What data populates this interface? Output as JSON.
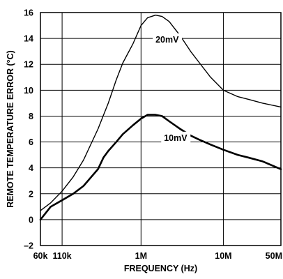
{
  "chart_data": {
    "type": "line",
    "title": "",
    "xlabel": "FREQUENCY (Hz)",
    "ylabel": "REMOTE TEMPERATURE ERROR (°C)",
    "xscale": "log",
    "xlim": [
      60000,
      50000000
    ],
    "ylim": [
      -2,
      16
    ],
    "grid": true,
    "xticks": [
      {
        "value": 60000,
        "label": "60k"
      },
      {
        "value": 110000,
        "label": "110k"
      },
      {
        "value": 1000000,
        "label": "1M"
      },
      {
        "value": 10000000,
        "label": "10M"
      },
      {
        "value": 50000000,
        "label": "50M"
      }
    ],
    "yticks": [
      -2,
      0,
      2,
      4,
      6,
      8,
      10,
      12,
      14,
      16
    ],
    "ytick_labels": [
      "–2",
      "0",
      "2",
      "4",
      "6",
      "8",
      "10",
      "12",
      "14",
      "16"
    ],
    "series": [
      {
        "name": "20mV",
        "stroke_width": 1.4,
        "x": [
          60000,
          80000,
          110000,
          150000,
          200000,
          300000,
          400000,
          500000,
          600000,
          800000,
          1000000,
          1200000,
          1500000,
          1800000,
          2200000,
          3000000,
          4000000,
          5000000,
          7000000,
          10000000,
          15000000,
          20000000,
          30000000,
          50000000
        ],
        "y": [
          0.7,
          1.3,
          2.2,
          3.3,
          4.6,
          7.0,
          9.0,
          10.8,
          12.1,
          13.6,
          15.0,
          15.6,
          15.8,
          15.7,
          15.3,
          14.2,
          13.0,
          12.2,
          11.0,
          10.0,
          9.5,
          9.3,
          9.0,
          8.7
        ]
      },
      {
        "name": "10mV",
        "stroke_width": 2.6,
        "x": [
          60000,
          80000,
          110000,
          150000,
          200000,
          300000,
          350000,
          400000,
          500000,
          600000,
          800000,
          1000000,
          1200000,
          1500000,
          1800000,
          2200000,
          3000000,
          4000000,
          5000000,
          7000000,
          10000000,
          15000000,
          20000000,
          30000000,
          50000000
        ],
        "y": [
          0.0,
          1.0,
          1.5,
          2.0,
          2.6,
          3.9,
          4.8,
          5.3,
          6.0,
          6.6,
          7.3,
          7.8,
          8.1,
          8.1,
          8.0,
          7.6,
          7.0,
          6.5,
          6.2,
          5.8,
          5.4,
          5.0,
          4.8,
          4.5,
          3.9
        ]
      }
    ]
  }
}
